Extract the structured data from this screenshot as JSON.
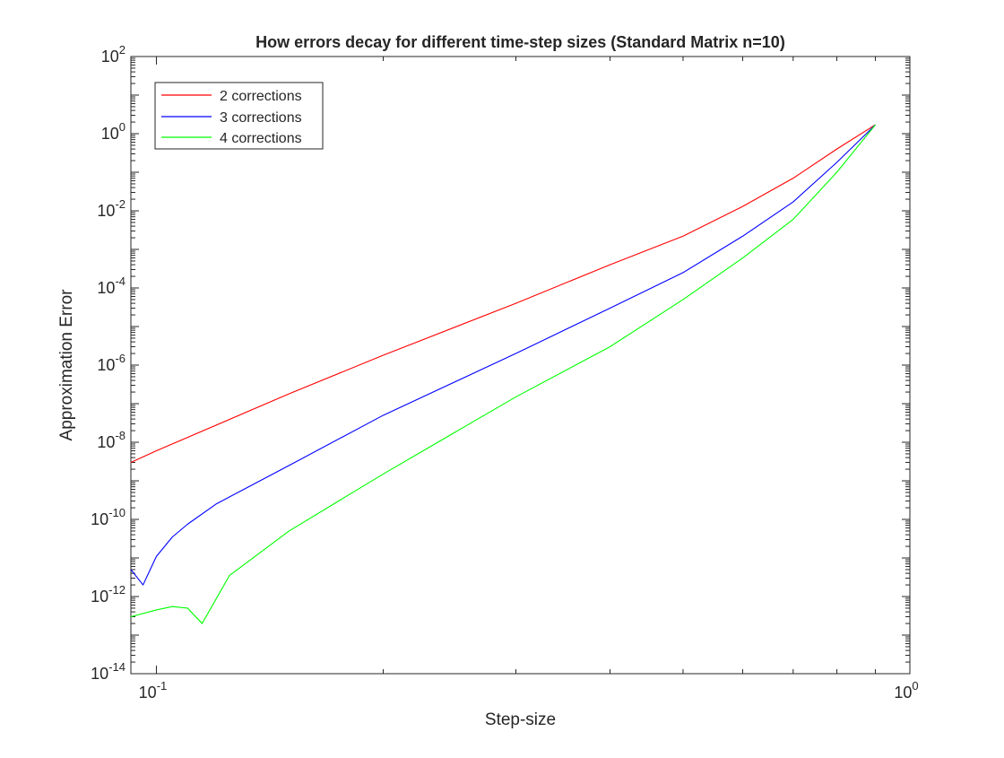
{
  "chart_data": {
    "type": "line",
    "title": "How errors decay for different time-step sizes (Standard Matrix n=10)",
    "xlabel": "Step-size",
    "ylabel": "Approximation Error",
    "xscale": "log",
    "yscale": "log",
    "xlim": [
      0.0925,
      1.0
    ],
    "ylim": [
      1e-14,
      100
    ],
    "grid": false,
    "legend_position": "top-left",
    "x_tick_labels": [
      {
        "base": "10",
        "exp": "-1"
      },
      {
        "base": "10",
        "exp": "0"
      }
    ],
    "y_tick_labels": [
      {
        "base": "10",
        "exp": "-14"
      },
      {
        "base": "10",
        "exp": "-12"
      },
      {
        "base": "10",
        "exp": "-10"
      },
      {
        "base": "10",
        "exp": "-8"
      },
      {
        "base": "10",
        "exp": "-6"
      },
      {
        "base": "10",
        "exp": "-4"
      },
      {
        "base": "10",
        "exp": "-2"
      },
      {
        "base": "10",
        "exp": "0"
      },
      {
        "base": "10",
        "exp": "2"
      }
    ],
    "series": [
      {
        "name": "2 corrections",
        "color": "#ff0000",
        "points": [
          [
            0.0925,
            3e-09
          ],
          [
            0.1,
            6e-09
          ],
          [
            0.15,
            1.8e-07
          ],
          [
            0.2,
            1.8e-06
          ],
          [
            0.3,
            4e-05
          ],
          [
            0.4,
            0.0004
          ],
          [
            0.5,
            0.0022
          ],
          [
            0.6,
            0.013
          ],
          [
            0.7,
            0.07
          ],
          [
            0.8,
            0.4
          ],
          [
            0.9,
            1.7
          ]
        ]
      },
      {
        "name": "3 corrections",
        "color": "#0000ff",
        "points": [
          [
            0.0925,
            5e-12
          ],
          [
            0.096,
            2e-12
          ],
          [
            0.1,
            1.1e-11
          ],
          [
            0.105,
            3.5e-11
          ],
          [
            0.11,
            7.5e-11
          ],
          [
            0.12,
            2.5e-10
          ],
          [
            0.15,
            2.5e-09
          ],
          [
            0.2,
            5e-08
          ],
          [
            0.3,
            2e-06
          ],
          [
            0.4,
            3e-05
          ],
          [
            0.5,
            0.00025
          ],
          [
            0.6,
            0.0022
          ],
          [
            0.7,
            0.017
          ],
          [
            0.8,
            0.18
          ],
          [
            0.9,
            1.7
          ]
        ]
      },
      {
        "name": "4 corrections",
        "color": "#00ff00",
        "points": [
          [
            0.0925,
            3e-13
          ],
          [
            0.1,
            4.5e-13
          ],
          [
            0.105,
            5.5e-13
          ],
          [
            0.11,
            5e-13
          ],
          [
            0.115,
            2e-13
          ],
          [
            0.125,
            3.5e-12
          ],
          [
            0.15,
            5e-11
          ],
          [
            0.2,
            1.5e-09
          ],
          [
            0.3,
            1.5e-07
          ],
          [
            0.4,
            3e-06
          ],
          [
            0.5,
            5e-05
          ],
          [
            0.6,
            0.0006
          ],
          [
            0.7,
            0.006
          ],
          [
            0.8,
            0.1
          ],
          [
            0.9,
            1.7
          ]
        ]
      }
    ]
  }
}
